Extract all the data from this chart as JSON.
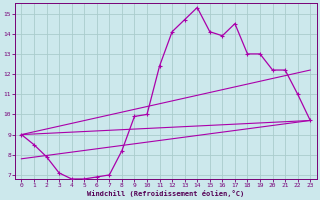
{
  "xlabel": "Windchill (Refroidissement éolien,°C)",
  "bg_color": "#cce8ec",
  "line_color": "#aa00aa",
  "grid_color": "#aacccc",
  "xlim": [
    -0.5,
    23.5
  ],
  "ylim": [
    6.8,
    15.5
  ],
  "xticks": [
    0,
    1,
    2,
    3,
    4,
    5,
    6,
    7,
    8,
    9,
    10,
    11,
    12,
    13,
    14,
    15,
    16,
    17,
    18,
    19,
    20,
    21,
    22,
    23
  ],
  "yticks": [
    7,
    8,
    9,
    10,
    11,
    12,
    13,
    14,
    15
  ],
  "series1_x": [
    0,
    1,
    2,
    3,
    4,
    5,
    6,
    7,
    8,
    9,
    10,
    11,
    12,
    13,
    14,
    15,
    16,
    17,
    18,
    19,
    20,
    21,
    22,
    23
  ],
  "series1_y": [
    9.0,
    8.5,
    7.9,
    7.1,
    6.8,
    6.8,
    6.9,
    7.0,
    8.2,
    9.9,
    10.0,
    12.4,
    14.1,
    14.7,
    15.3,
    14.1,
    13.9,
    14.5,
    13.0,
    13.0,
    12.2,
    12.2,
    11.0,
    9.7
  ],
  "trend1_x": [
    0,
    23
  ],
  "trend1_y": [
    9.0,
    12.2
  ],
  "trend2_x": [
    0,
    23
  ],
  "trend2_y": [
    9.0,
    9.7
  ],
  "trend3_x": [
    0,
    23
  ],
  "trend3_y": [
    7.8,
    9.7
  ]
}
